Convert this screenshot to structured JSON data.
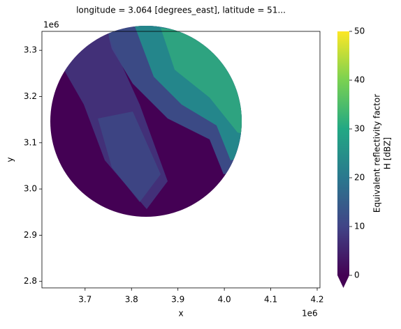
{
  "chart_data": {
    "type": "image",
    "title": "longitude = 3.064 [degrees_east], latitude = 51...",
    "x_label": "x",
    "y_label": "y",
    "x_offset": "1e6",
    "y_offset": "1e6",
    "xlim": [
      3.607,
      4.206
    ],
    "xticks": [
      3.7,
      3.8,
      3.9,
      {
        "value": 4,
        "label": "4.0"
      },
      4.1,
      4.2
    ],
    "ylim": [
      2.786,
      3.341
    ],
    "yticks": [
      2.8,
      2.9,
      {
        "value": 3,
        "label": "3.0"
      },
      3.1,
      3.2,
      3.3
    ],
    "colorbar": {
      "label": [
        "Equivalent reflectivity factor",
        "H [dBZ]"
      ],
      "clim": [
        0,
        50
      ],
      "ticks": [
        0,
        10,
        20,
        30,
        40,
        50
      ],
      "colors": [
        "#440154",
        "#414487",
        "#2a788e",
        "#22a884",
        "#7ad151",
        "#fde725"
      ]
    }
  }
}
